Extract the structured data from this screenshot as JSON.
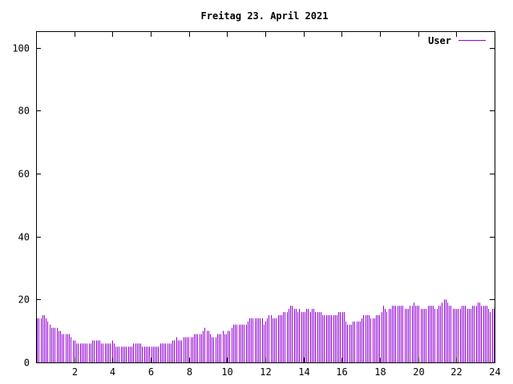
{
  "chart_data": {
    "type": "bar",
    "title": "Freitag 23. April 2021",
    "xlabel": "",
    "ylabel": "",
    "xlim": [
      0,
      24
    ],
    "ylim": [
      0,
      105
    ],
    "x_ticks": [
      2,
      4,
      6,
      8,
      10,
      12,
      14,
      16,
      18,
      20,
      22,
      24
    ],
    "x_tick_labels": [
      "2",
      "4",
      "6",
      "8",
      "10",
      "12",
      "14",
      "16",
      "18",
      "20",
      "22",
      "24"
    ],
    "y_ticks": [
      0,
      20,
      40,
      60,
      80,
      100
    ],
    "y_tick_labels": [
      "0",
      "20",
      "40",
      "60",
      "80",
      "100"
    ],
    "grid": false,
    "legend": "top-right",
    "series": [
      {
        "name": "User",
        "color": "#9400d3",
        "step_hours": 0.0833,
        "values": [
          14,
          14,
          14,
          15,
          15,
          14,
          13,
          12,
          11,
          11,
          11,
          11,
          10,
          10,
          9,
          9,
          9,
          9,
          9,
          8,
          7,
          7,
          6,
          6,
          6,
          6,
          6,
          6,
          6,
          6,
          6,
          7,
          7,
          7,
          7,
          7,
          6,
          6,
          6,
          6,
          6,
          6,
          7,
          6,
          5,
          5,
          5,
          5,
          5,
          5,
          5,
          5,
          5,
          5,
          6,
          6,
          6,
          6,
          6,
          5,
          5,
          5,
          5,
          5,
          5,
          5,
          5,
          5,
          5,
          6,
          6,
          6,
          6,
          6,
          6,
          6,
          7,
          7,
          8,
          7,
          7,
          7,
          8,
          8,
          8,
          8,
          8,
          8,
          9,
          9,
          9,
          9,
          9,
          10,
          11,
          10,
          10,
          9,
          8,
          8,
          8,
          9,
          9,
          9,
          10,
          9,
          9,
          10,
          10,
          11,
          12,
          12,
          12,
          12,
          12,
          12,
          12,
          12,
          13,
          14,
          14,
          14,
          14,
          14,
          14,
          14,
          14,
          12,
          13,
          14,
          15,
          15,
          14,
          14,
          14,
          15,
          15,
          15,
          16,
          16,
          16,
          17,
          18,
          18,
          17,
          17,
          16,
          17,
          16,
          16,
          16,
          17,
          17,
          16,
          17,
          17,
          16,
          16,
          16,
          16,
          15,
          15,
          15,
          15,
          15,
          15,
          15,
          15,
          15,
          16,
          16,
          16,
          16,
          13,
          12,
          12,
          12,
          13,
          13,
          13,
          13,
          13,
          14,
          15,
          15,
          15,
          15,
          14,
          14,
          14,
          15,
          15,
          15,
          16,
          18,
          17,
          16,
          17,
          17,
          18,
          18,
          18,
          18,
          18,
          18,
          18,
          17,
          17,
          17,
          18,
          18,
          19,
          18,
          18,
          18,
          17,
          17,
          17,
          17,
          18,
          18,
          18,
          18,
          17,
          17,
          18,
          18,
          19,
          20,
          20,
          19,
          18,
          18,
          17,
          17,
          17,
          17,
          17,
          18,
          18,
          18,
          17,
          17,
          17,
          18,
          18,
          18,
          19,
          19,
          18,
          18,
          18,
          18,
          17,
          16,
          17,
          17
        ]
      }
    ]
  }
}
